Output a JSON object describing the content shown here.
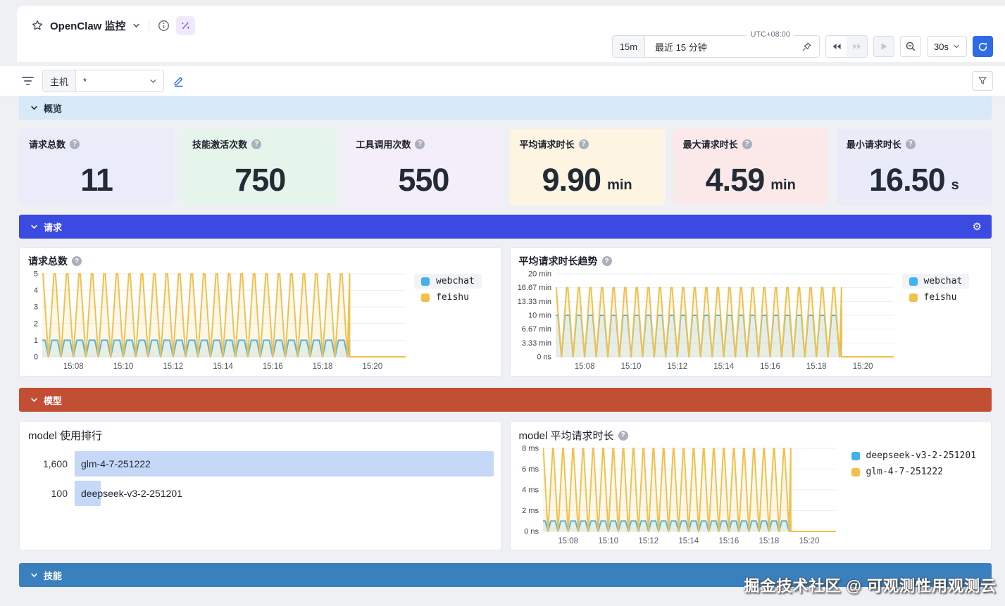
{
  "header": {
    "title": "OpenClaw 监控"
  },
  "time_controls": {
    "range_badge": "15m",
    "range_label": "最近 15 分钟",
    "timezone": "UTC+08:00",
    "refresh_interval": "30s"
  },
  "filter_bar": {
    "host_label": "主机",
    "host_value": "*"
  },
  "sections": {
    "overview": {
      "label": "概览",
      "bg": "#d8e9f7",
      "fg": "#1c2b36"
    },
    "requests": {
      "label": "请求",
      "bg": "#3b4ae1",
      "fg": "#ffffff"
    },
    "models": {
      "label": "模型",
      "bg": "#c24e33",
      "fg": "#ffffff"
    },
    "skills": {
      "label": "技能",
      "bg": "#3a80bf",
      "fg": "#ffffff"
    }
  },
  "stats": [
    {
      "title": "请求总数",
      "value": "11",
      "unit": "",
      "bg": "#eaedf9"
    },
    {
      "title": "技能激活次数",
      "value": "750",
      "unit": "",
      "bg": "#e6f5ec"
    },
    {
      "title": "工具调用次数",
      "value": "550",
      "unit": "",
      "bg": "#f3eefa"
    },
    {
      "title": "平均请求时长",
      "value": "9.90",
      "unit": "min",
      "bg": "#fdf5e2"
    },
    {
      "title": "最大请求时长",
      "value": "4.59",
      "unit": "min",
      "bg": "#fbe9e9"
    },
    {
      "title": "最小请求时长",
      "value": "16.50",
      "unit": "s",
      "bg": "#eaebf8"
    }
  ],
  "chart_data": [
    {
      "type": "line",
      "title": "请求总数",
      "ylim": [
        0,
        5
      ],
      "yticks": [
        {
          "value": 5,
          "label": "5"
        },
        {
          "value": 4,
          "label": "4"
        },
        {
          "value": 3,
          "label": "3"
        },
        {
          "value": 2,
          "label": "2"
        },
        {
          "value": 1,
          "label": "1"
        },
        {
          "value": 0,
          "label": "0"
        }
      ],
      "xticks": [
        "15:08",
        "15:10",
        "15:12",
        "15:14",
        "15:16",
        "15:18",
        "15:20"
      ],
      "time": {
        "start": "15:06:45",
        "end": "15:21:20",
        "drop": "15:19:05",
        "start_s": 0,
        "end_s": 875,
        "drop_s": 740,
        "tick_first_s": 75,
        "tick_step_s": 120
      },
      "period_s": 30,
      "series": [
        {
          "name": "webchat",
          "color": "#41b2ef",
          "peak": 1,
          "flat_top": 0.45
        },
        {
          "name": "feishu",
          "color": "#f2c04d",
          "peak": 5,
          "flat_top": 0.12
        }
      ],
      "legend_position": "right",
      "legend_highlight_first": true
    },
    {
      "type": "line",
      "title": "平均请求时长趋势",
      "ylim": [
        0,
        20
      ],
      "yticks": [
        {
          "value": 20,
          "label": "20 min"
        },
        {
          "value": 16.67,
          "label": "16.67 min"
        },
        {
          "value": 13.33,
          "label": "13.33 min"
        },
        {
          "value": 10,
          "label": "10 min"
        },
        {
          "value": 6.67,
          "label": "6.67 min"
        },
        {
          "value": 3.33,
          "label": "3.33 min"
        },
        {
          "value": 0,
          "label": "0 ns"
        }
      ],
      "xticks": [
        "15:08",
        "15:10",
        "15:12",
        "15:14",
        "15:16",
        "15:18",
        "15:20"
      ],
      "time": {
        "start": "15:06:45",
        "end": "15:21:20",
        "drop": "15:19:05",
        "start_s": 0,
        "end_s": 875,
        "drop_s": 740,
        "tick_first_s": 75,
        "tick_step_s": 120
      },
      "period_s": 30,
      "series": [
        {
          "name": "webchat",
          "color": "#41b2ef",
          "peak": 10,
          "flat_top": 0.4
        },
        {
          "name": "feishu",
          "color": "#f2c04d",
          "peak": 16.67,
          "flat_top": 0.1
        }
      ],
      "legend_position": "right",
      "legend_highlight_first": true
    },
    {
      "type": "line",
      "title": "model 平均请求时长",
      "ylim": [
        0,
        8
      ],
      "yticks": [
        {
          "value": 8,
          "label": "8 ms"
        },
        {
          "value": 6,
          "label": "6 ms"
        },
        {
          "value": 4,
          "label": "4 ms"
        },
        {
          "value": 2,
          "label": "2 ms"
        },
        {
          "value": 0,
          "label": "0 ns"
        }
      ],
      "xticks": [
        "15:08",
        "15:10",
        "15:12",
        "15:14",
        "15:16",
        "15:18",
        "15:20"
      ],
      "time": {
        "start": "15:06:45",
        "end": "15:21:20",
        "drop": "15:19:05",
        "start_s": 0,
        "end_s": 875,
        "drop_s": 740,
        "tick_first_s": 75,
        "tick_step_s": 120
      },
      "period_s": 30,
      "series": [
        {
          "name": "deepseek-v3-2-251201",
          "color": "#41b2ef",
          "peak": 1,
          "flat_top": 0.45
        },
        {
          "name": "glm-4-7-251222",
          "color": "#f2c04d",
          "peak": 8,
          "flat_top": 0.07
        }
      ],
      "legend_position": "right",
      "legend_highlight_first": false
    },
    {
      "type": "bar",
      "title": "model 使用排行",
      "orientation": "horizontal",
      "categories": [
        "glm-4-7-251222",
        "deepseek-v3-2-251201"
      ],
      "values": [
        1600,
        100
      ],
      "value_labels": [
        "1,600",
        "100"
      ],
      "xlim": [
        0,
        1600
      ],
      "bar_color": "#c5d8f7"
    }
  ],
  "watermark": {
    "text": "掘金技术社区 @ 可观测性用观测云"
  },
  "colors": {
    "accent_blue": "#2f6be4",
    "series_blue": "#41b2ef",
    "series_orange": "#f2c04d",
    "page_bg": "#eef0f3",
    "gear_glyph": "⚙",
    "help_glyph": "?"
  }
}
